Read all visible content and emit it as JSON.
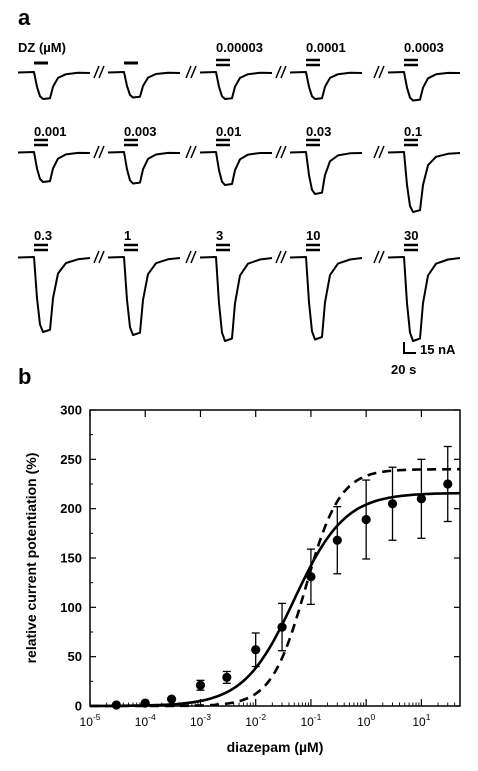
{
  "panel_a": {
    "label": "a",
    "compound_label": "DZ (µM)",
    "traces": [
      {
        "conc": "",
        "response": 0.9
      },
      {
        "conc": "",
        "response": 0.85
      },
      {
        "conc": "0.00003",
        "response": 0.9
      },
      {
        "conc": "0.0001",
        "response": 0.9
      },
      {
        "conc": "0.0003",
        "response": 0.95
      },
      {
        "conc": "0.001",
        "response": 1.0
      },
      {
        "conc": "0.003",
        "response": 1.05
      },
      {
        "conc": "0.01",
        "response": 1.1
      },
      {
        "conc": "0.03",
        "response": 1.4
      },
      {
        "conc": "0.1",
        "response": 2.0
      },
      {
        "conc": "0.3",
        "response": 2.5
      },
      {
        "conc": "1",
        "response": 2.6
      },
      {
        "conc": "3",
        "response": 2.8
      },
      {
        "conc": "10",
        "response": 2.75
      },
      {
        "conc": "30",
        "response": 2.8
      }
    ],
    "scale_bar": {
      "current": "15 nA",
      "time": "20 s"
    }
  },
  "panel_b_label": "b",
  "chart_data": {
    "type": "scatter",
    "xlabel": "diazepam (µM)",
    "ylabel": "relative current potentiation (%)",
    "xscale": "log",
    "xlim": [
      1e-05,
      50
    ],
    "ylim": [
      0,
      300
    ],
    "xticks": [
      1e-05,
      0.0001,
      0.001,
      0.01,
      0.1,
      1,
      10
    ],
    "xtick_labels": [
      {
        "base": "10",
        "exp": "-5"
      },
      {
        "base": "10",
        "exp": "-4"
      },
      {
        "base": "10",
        "exp": "-3"
      },
      {
        "base": "10",
        "exp": "-2"
      },
      {
        "base": "10",
        "exp": "-1"
      },
      {
        "base": "10",
        "exp": "0"
      },
      {
        "base": "10",
        "exp": "1"
      }
    ],
    "yticks": [
      0,
      50,
      100,
      150,
      200,
      250,
      300
    ],
    "ytick_labels": [
      "0",
      "50",
      "100",
      "150",
      "200",
      "250",
      "300"
    ],
    "points": [
      {
        "x": 3e-05,
        "y": 1,
        "err": 0
      },
      {
        "x": 0.0001,
        "y": 3,
        "err": 0
      },
      {
        "x": 0.0003,
        "y": 7,
        "err": 0
      },
      {
        "x": 0.001,
        "y": 21,
        "err": 5
      },
      {
        "x": 0.003,
        "y": 29,
        "err": 6
      },
      {
        "x": 0.01,
        "y": 57,
        "err": 17
      },
      {
        "x": 0.03,
        "y": 80,
        "err": 24
      },
      {
        "x": 0.1,
        "y": 131,
        "err": 28
      },
      {
        "x": 0.3,
        "y": 168,
        "err": 34
      },
      {
        "x": 1,
        "y": 189,
        "err": 40
      },
      {
        "x": 3,
        "y": 205,
        "err": 37
      },
      {
        "x": 10,
        "y": 210,
        "err": 40
      },
      {
        "x": 30,
        "y": 225,
        "err": 38
      }
    ],
    "fits": [
      {
        "style": "solid",
        "top": 216,
        "ec50": 0.05,
        "hill": 0.95
      },
      {
        "style": "dashed",
        "top": 240,
        "ec50": 0.08,
        "hill": 1.4
      }
    ],
    "grid": false
  }
}
